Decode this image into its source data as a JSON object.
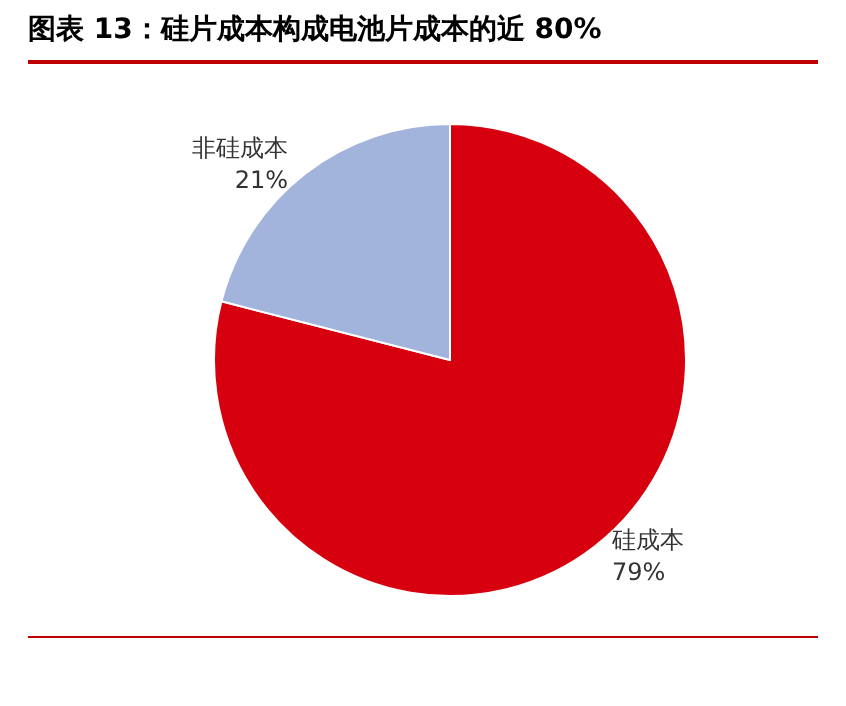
{
  "chart_data": {
    "type": "pie",
    "title": "图表 13：硅片成本构成电池片成本的近 80%",
    "categories": [
      "硅成本",
      "非硅成本"
    ],
    "values": [
      79,
      21
    ],
    "colors": [
      "#d7000f",
      "#a3b4dc"
    ],
    "value_labels": [
      "79%",
      "21%"
    ],
    "legend": false
  }
}
